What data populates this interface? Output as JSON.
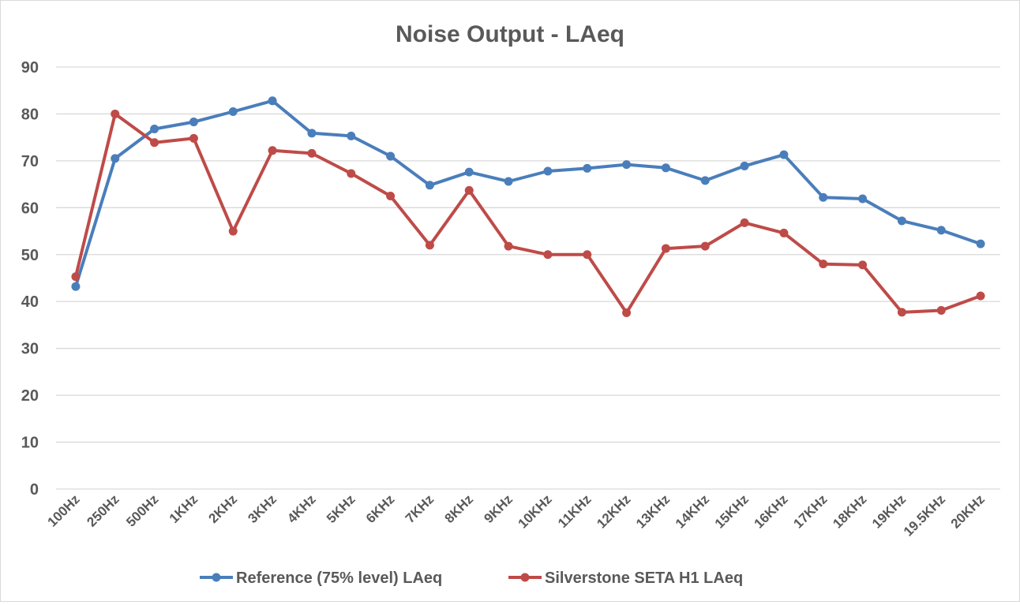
{
  "chart_data": {
    "type": "line",
    "title": "Noise Output - LAeq",
    "xlabel": "",
    "ylabel": "",
    "ylim": [
      0,
      90
    ],
    "yticks": [
      0,
      10,
      20,
      30,
      40,
      50,
      60,
      70,
      80,
      90
    ],
    "grid": true,
    "legend_position": "bottom",
    "categories": [
      "100Hz",
      "250Hz",
      "500Hz",
      "1KHz",
      "2KHz",
      "3KHz",
      "4KHz",
      "5KHz",
      "6KHz",
      "7KHz",
      "8KHz",
      "9KHz",
      "10KHz",
      "11KHz",
      "12KHz",
      "13KHz",
      "14KHz",
      "15KHz",
      "16KHz",
      "17KHz",
      "18KHz",
      "19KHz",
      "19.5KHz",
      "20KHz"
    ],
    "series": [
      {
        "name": "Reference (75% level) LAeq",
        "color": "#4a7ebb",
        "values": [
          43.2,
          70.5,
          76.8,
          78.3,
          80.5,
          82.8,
          75.9,
          75.3,
          71.0,
          64.8,
          67.6,
          65.6,
          67.8,
          68.4,
          69.2,
          68.5,
          65.8,
          68.9,
          71.3,
          62.2,
          61.9,
          57.2,
          55.2,
          52.3
        ]
      },
      {
        "name": "Silverstone SETA H1 LAeq",
        "color": "#be4b48",
        "values": [
          45.3,
          80.0,
          73.9,
          74.8,
          55.0,
          72.2,
          71.6,
          67.3,
          62.5,
          52.0,
          63.7,
          51.8,
          50.0,
          50.0,
          37.6,
          51.3,
          51.8,
          56.8,
          54.6,
          48.0,
          47.8,
          37.7,
          38.1,
          41.2
        ]
      }
    ]
  }
}
